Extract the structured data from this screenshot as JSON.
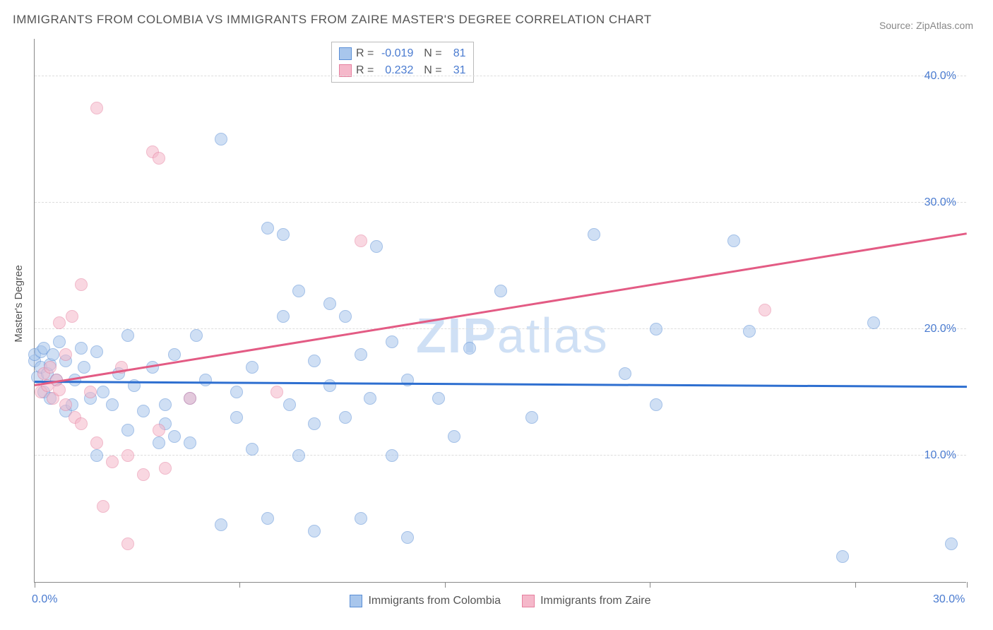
{
  "title": "IMMIGRANTS FROM COLOMBIA VS IMMIGRANTS FROM ZAIRE MASTER'S DEGREE CORRELATION CHART",
  "source": "Source: ZipAtlas.com",
  "y_axis_label": "Master's Degree",
  "watermark_zip": "ZIP",
  "watermark_atlas": "atlas",
  "chart": {
    "type": "scatter",
    "xlim": [
      0,
      30
    ],
    "ylim": [
      0,
      43
    ],
    "x_ticks": [
      0,
      6.6,
      13.2,
      19.8,
      26.4,
      30
    ],
    "x_tick_labels": {
      "0": "0.0%",
      "30": "30.0%"
    },
    "y_gridlines": [
      10,
      20,
      30,
      40
    ],
    "y_tick_labels": {
      "10": "10.0%",
      "20": "20.0%",
      "30": "30.0%",
      "40": "40.0%"
    },
    "background_color": "#ffffff",
    "grid_color": "#dddddd",
    "axis_color": "#888888",
    "tick_label_color": "#4a7bd0",
    "marker_radius": 9,
    "marker_stroke_width": 1.5,
    "series": [
      {
        "name": "Immigrants from Colombia",
        "fill": "#a8c6ec",
        "stroke": "#5b8fd6",
        "fill_opacity": 0.55,
        "R": "-0.019",
        "N": "81",
        "trend": {
          "y_at_x0": 15.8,
          "y_at_xmax": 15.4,
          "color": "#2e6fd0",
          "width": 2.5
        },
        "points": [
          [
            0.0,
            17.5
          ],
          [
            0.0,
            18.0
          ],
          [
            0.1,
            16.2
          ],
          [
            0.2,
            17.0
          ],
          [
            0.2,
            18.2
          ],
          [
            0.3,
            15.0
          ],
          [
            0.3,
            18.5
          ],
          [
            0.4,
            16.5
          ],
          [
            0.5,
            17.2
          ],
          [
            0.5,
            14.5
          ],
          [
            0.6,
            18.0
          ],
          [
            0.7,
            16.0
          ],
          [
            0.8,
            19.0
          ],
          [
            1.0,
            13.5
          ],
          [
            1.0,
            17.5
          ],
          [
            1.2,
            14.0
          ],
          [
            1.3,
            16.0
          ],
          [
            1.5,
            18.5
          ],
          [
            1.6,
            17.0
          ],
          [
            1.8,
            14.5
          ],
          [
            2.0,
            18.2
          ],
          [
            2.0,
            10.0
          ],
          [
            2.2,
            15.0
          ],
          [
            2.5,
            14.0
          ],
          [
            2.7,
            16.5
          ],
          [
            3.0,
            12.0
          ],
          [
            3.0,
            19.5
          ],
          [
            3.2,
            15.5
          ],
          [
            3.5,
            13.5
          ],
          [
            3.8,
            17.0
          ],
          [
            4.0,
            11.0
          ],
          [
            4.2,
            14.0
          ],
          [
            4.2,
            12.5
          ],
          [
            4.5,
            11.5
          ],
          [
            4.5,
            18.0
          ],
          [
            5.0,
            14.5
          ],
          [
            5.0,
            11.0
          ],
          [
            5.2,
            19.5
          ],
          [
            5.5,
            16.0
          ],
          [
            6.0,
            4.5
          ],
          [
            6.0,
            35.0
          ],
          [
            6.5,
            15.0
          ],
          [
            6.5,
            13.0
          ],
          [
            7.0,
            17.0
          ],
          [
            7.0,
            10.5
          ],
          [
            7.5,
            28.0
          ],
          [
            7.5,
            5.0
          ],
          [
            8.0,
            21.0
          ],
          [
            8.0,
            27.5
          ],
          [
            8.2,
            14.0
          ],
          [
            8.5,
            10.0
          ],
          [
            8.5,
            23.0
          ],
          [
            9.0,
            12.5
          ],
          [
            9.0,
            17.5
          ],
          [
            9.0,
            4.0
          ],
          [
            9.5,
            15.5
          ],
          [
            9.5,
            22.0
          ],
          [
            10.0,
            13.0
          ],
          [
            10.0,
            21.0
          ],
          [
            10.5,
            18.0
          ],
          [
            10.5,
            5.0
          ],
          [
            10.8,
            14.5
          ],
          [
            11.0,
            26.5
          ],
          [
            11.5,
            10.0
          ],
          [
            11.5,
            19.0
          ],
          [
            12.0,
            3.5
          ],
          [
            12.0,
            16.0
          ],
          [
            13.5,
            11.5
          ],
          [
            14.0,
            18.5
          ],
          [
            15.0,
            23.0
          ],
          [
            16.0,
            13.0
          ],
          [
            18.0,
            27.5
          ],
          [
            19.0,
            16.5
          ],
          [
            20.0,
            20.0
          ],
          [
            22.5,
            27.0
          ],
          [
            23.0,
            19.8
          ],
          [
            26.0,
            2.0
          ],
          [
            27.0,
            20.5
          ],
          [
            29.5,
            3.0
          ],
          [
            20.0,
            14.0
          ],
          [
            13.0,
            14.5
          ]
        ]
      },
      {
        "name": "Immigrants from Zaire",
        "fill": "#f5b8ca",
        "stroke": "#e6809f",
        "fill_opacity": 0.55,
        "R": "0.232",
        "N": "31",
        "trend": {
          "y_at_x0": 15.5,
          "y_at_xmax": 27.5,
          "color": "#e35b84",
          "width": 2.5
        },
        "points": [
          [
            0.2,
            15.0
          ],
          [
            0.3,
            16.5
          ],
          [
            0.4,
            15.5
          ],
          [
            0.5,
            17.0
          ],
          [
            0.6,
            14.5
          ],
          [
            0.7,
            16.0
          ],
          [
            0.8,
            15.2
          ],
          [
            0.8,
            20.5
          ],
          [
            1.0,
            14.0
          ],
          [
            1.0,
            18.0
          ],
          [
            1.2,
            21.0
          ],
          [
            1.3,
            13.0
          ],
          [
            1.5,
            23.5
          ],
          [
            1.5,
            12.5
          ],
          [
            1.8,
            15.0
          ],
          [
            2.0,
            37.5
          ],
          [
            2.0,
            11.0
          ],
          [
            2.2,
            6.0
          ],
          [
            2.5,
            9.5
          ],
          [
            2.8,
            17.0
          ],
          [
            3.0,
            10.0
          ],
          [
            3.0,
            3.0
          ],
          [
            3.5,
            8.5
          ],
          [
            3.8,
            34.0
          ],
          [
            4.0,
            12.0
          ],
          [
            4.0,
            33.5
          ],
          [
            4.2,
            9.0
          ],
          [
            5.0,
            14.5
          ],
          [
            7.8,
            15.0
          ],
          [
            10.5,
            27.0
          ],
          [
            23.5,
            21.5
          ]
        ]
      }
    ]
  },
  "legend_bottom": [
    {
      "label": "Immigrants from Colombia",
      "fill": "#a8c6ec",
      "stroke": "#5b8fd6"
    },
    {
      "label": "Immigrants from Zaire",
      "fill": "#f5b8ca",
      "stroke": "#e6809f"
    }
  ]
}
